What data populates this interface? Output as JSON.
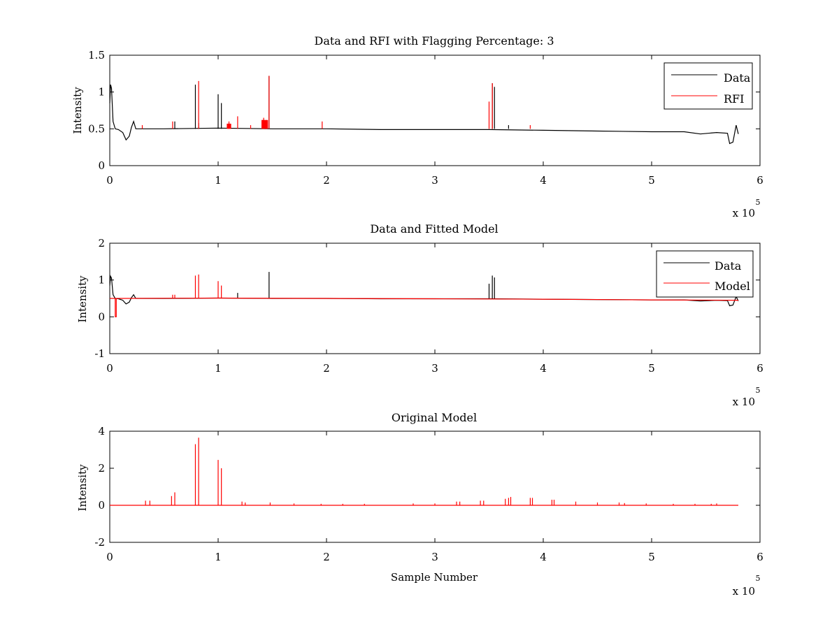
{
  "chart_data": [
    {
      "type": "line",
      "title": "Data and RFI with Flagging Percentage: 3",
      "xlabel": "",
      "ylabel": "Intensity",
      "xlim": [
        0,
        6
      ],
      "ylim": [
        0,
        1.5
      ],
      "xticks": [
        0,
        1,
        2,
        3,
        4,
        5,
        6
      ],
      "yticks": [
        0,
        0.5,
        1,
        1.5
      ],
      "xticklabels": [
        "0",
        "1",
        "2",
        "3",
        "4",
        "5",
        "6"
      ],
      "yticklabels": [
        "0",
        "0.5",
        "1",
        "1.5"
      ],
      "x_multiplier": "x 10",
      "x_multiplier_exp": "5",
      "legend_position": "top-right",
      "series": [
        {
          "name": "Data",
          "color": "#000000",
          "values": [
            [
              0,
              0.85
            ],
            [
              0.008,
              1.1
            ],
            [
              0.016,
              1.05
            ],
            [
              0.03,
              0.6
            ],
            [
              0.05,
              0.5
            ],
            [
              0.08,
              0.49
            ],
            [
              0.12,
              0.45
            ],
            [
              0.15,
              0.35
            ],
            [
              0.18,
              0.4
            ],
            [
              0.2,
              0.52
            ],
            [
              0.22,
              0.6
            ],
            [
              0.24,
              0.5
            ],
            [
              0.5,
              0.5
            ],
            [
              1.0,
              0.51
            ],
            [
              1.5,
              0.5
            ],
            [
              2.0,
              0.5
            ],
            [
              2.5,
              0.49
            ],
            [
              3.0,
              0.49
            ],
            [
              3.5,
              0.49
            ],
            [
              4.0,
              0.48
            ],
            [
              4.5,
              0.47
            ],
            [
              5.0,
              0.46
            ],
            [
              5.3,
              0.46
            ],
            [
              5.45,
              0.43
            ],
            [
              5.6,
              0.45
            ],
            [
              5.7,
              0.44
            ],
            [
              5.72,
              0.3
            ],
            [
              5.75,
              0.32
            ],
            [
              5.78,
              0.55
            ],
            [
              5.8,
              0.43
            ]
          ],
          "spikes": [
            [
              0.6,
              0.6
            ],
            [
              0.79,
              1.1
            ],
            [
              0.82,
              0.58
            ],
            [
              1.0,
              0.97
            ],
            [
              1.03,
              0.85
            ],
            [
              1.47,
              1.22
            ],
            [
              3.53,
              1.12
            ],
            [
              3.55,
              1.07
            ],
            [
              3.68,
              0.55
            ]
          ]
        },
        {
          "name": "RFI",
          "color": "#ff0000",
          "spikes": [
            [
              0.3,
              0.55
            ],
            [
              0.58,
              0.6
            ],
            [
              0.82,
              1.15
            ],
            [
              1.1,
              0.6
            ],
            [
              1.18,
              0.67
            ],
            [
              1.3,
              0.55
            ],
            [
              1.42,
              0.65
            ],
            [
              1.45,
              0.6
            ],
            [
              1.47,
              1.22
            ],
            [
              1.96,
              0.6
            ],
            [
              3.5,
              0.87
            ],
            [
              3.53,
              1.12
            ],
            [
              3.88,
              0.55
            ]
          ],
          "bands": [
            [
              1.08,
              1.12,
              0.57
            ],
            [
              1.4,
              1.46,
              0.62
            ]
          ]
        }
      ]
    },
    {
      "type": "line",
      "title": "Data and Fitted Model",
      "xlabel": "",
      "ylabel": "Intensity",
      "xlim": [
        0,
        6
      ],
      "ylim": [
        -1,
        2
      ],
      "xticks": [
        0,
        1,
        2,
        3,
        4,
        5,
        6
      ],
      "yticks": [
        -1,
        0,
        1,
        2
      ],
      "xticklabels": [
        "0",
        "1",
        "2",
        "3",
        "4",
        "5",
        "6"
      ],
      "yticklabels": [
        "-1",
        "0",
        "1",
        "2"
      ],
      "x_multiplier": "x 10",
      "x_multiplier_exp": "5",
      "legend_position": "top-right",
      "series": [
        {
          "name": "Data",
          "color": "#000000",
          "values": [
            [
              0,
              0.85
            ],
            [
              0.008,
              1.1
            ],
            [
              0.016,
              1.05
            ],
            [
              0.03,
              0.6
            ],
            [
              0.05,
              0.5
            ],
            [
              0.08,
              0.49
            ],
            [
              0.12,
              0.45
            ],
            [
              0.15,
              0.35
            ],
            [
              0.18,
              0.4
            ],
            [
              0.2,
              0.52
            ],
            [
              0.22,
              0.6
            ],
            [
              0.24,
              0.5
            ],
            [
              0.5,
              0.5
            ],
            [
              1.0,
              0.51
            ],
            [
              1.5,
              0.5
            ],
            [
              2.0,
              0.5
            ],
            [
              2.5,
              0.49
            ],
            [
              3.0,
              0.49
            ],
            [
              3.5,
              0.49
            ],
            [
              4.0,
              0.48
            ],
            [
              4.5,
              0.47
            ],
            [
              5.0,
              0.46
            ],
            [
              5.3,
              0.46
            ],
            [
              5.45,
              0.43
            ],
            [
              5.6,
              0.45
            ],
            [
              5.7,
              0.44
            ],
            [
              5.72,
              0.3
            ],
            [
              5.75,
              0.32
            ],
            [
              5.78,
              0.55
            ],
            [
              5.8,
              0.43
            ]
          ],
          "spikes": [
            [
              1.47,
              1.22
            ],
            [
              1.18,
              0.65
            ],
            [
              3.5,
              0.9
            ],
            [
              3.53,
              1.12
            ],
            [
              3.55,
              1.07
            ]
          ]
        },
        {
          "name": "Model",
          "color": "#ff0000",
          "values": [
            [
              0,
              0.5
            ],
            [
              0.05,
              0.5
            ],
            [
              0.05,
              0
            ],
            [
              0.06,
              0
            ],
            [
              0.06,
              0.5
            ],
            [
              1.0,
              0.51
            ],
            [
              2.0,
              0.5
            ],
            [
              3.0,
              0.49
            ],
            [
              4.0,
              0.48
            ],
            [
              5.0,
              0.46
            ],
            [
              5.8,
              0.45
            ]
          ],
          "spikes": [
            [
              0.79,
              1.12
            ],
            [
              0.82,
              1.15
            ],
            [
              1.0,
              0.97
            ],
            [
              1.03,
              0.85
            ],
            [
              0.58,
              0.6
            ],
            [
              0.6,
              0.6
            ]
          ]
        }
      ]
    },
    {
      "type": "line",
      "title": "Original Model",
      "xlabel": "Sample Number",
      "ylabel": "Intensity",
      "xlim": [
        0,
        6
      ],
      "ylim": [
        -2,
        4
      ],
      "xticks": [
        0,
        1,
        2,
        3,
        4,
        5,
        6
      ],
      "yticks": [
        -2,
        0,
        2,
        4
      ],
      "xticklabels": [
        "0",
        "1",
        "2",
        "3",
        "4",
        "5",
        "6"
      ],
      "yticklabels": [
        "-2",
        "0",
        "2",
        "4"
      ],
      "x_multiplier": "x 10",
      "x_multiplier_exp": "5",
      "series": [
        {
          "color": "#ff0000",
          "values": [
            [
              0,
              0
            ],
            [
              5.8,
              0
            ]
          ],
          "spikes": [
            [
              0.33,
              0.25
            ],
            [
              0.37,
              0.25
            ],
            [
              0.57,
              0.5
            ],
            [
              0.6,
              0.7
            ],
            [
              0.79,
              3.3
            ],
            [
              0.82,
              3.65
            ],
            [
              1.0,
              2.45
            ],
            [
              1.03,
              2.0
            ],
            [
              1.22,
              0.2
            ],
            [
              1.25,
              0.15
            ],
            [
              1.48,
              0.15
            ],
            [
              1.7,
              0.1
            ],
            [
              1.95,
              0.08
            ],
            [
              2.15,
              0.08
            ],
            [
              2.35,
              0.08
            ],
            [
              2.8,
              0.1
            ],
            [
              3.0,
              0.1
            ],
            [
              3.2,
              0.2
            ],
            [
              3.23,
              0.2
            ],
            [
              3.42,
              0.25
            ],
            [
              3.45,
              0.25
            ],
            [
              3.65,
              0.35
            ],
            [
              3.68,
              0.4
            ],
            [
              3.7,
              0.45
            ],
            [
              3.88,
              0.4
            ],
            [
              3.9,
              0.4
            ],
            [
              4.08,
              0.3
            ],
            [
              4.1,
              0.3
            ],
            [
              4.3,
              0.2
            ],
            [
              4.5,
              0.15
            ],
            [
              4.7,
              0.15
            ],
            [
              4.75,
              0.12
            ],
            [
              4.95,
              0.1
            ],
            [
              5.2,
              0.08
            ],
            [
              5.4,
              0.08
            ],
            [
              5.55,
              0.08
            ],
            [
              5.6,
              0.1
            ]
          ]
        }
      ]
    }
  ]
}
